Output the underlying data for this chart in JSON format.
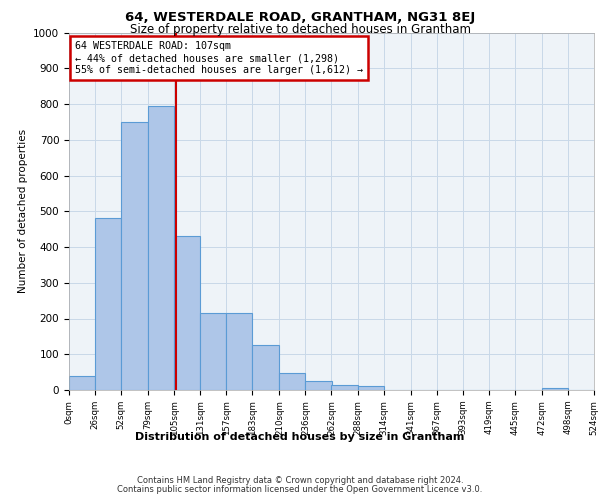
{
  "title": "64, WESTERDALE ROAD, GRANTHAM, NG31 8EJ",
  "subtitle": "Size of property relative to detached houses in Grantham",
  "xlabel": "Distribution of detached houses by size in Grantham",
  "ylabel": "Number of detached properties",
  "footer_line1": "Contains HM Land Registry data © Crown copyright and database right 2024.",
  "footer_line2": "Contains public sector information licensed under the Open Government Licence v3.0.",
  "annotation_line1": "64 WESTERDALE ROAD: 107sqm",
  "annotation_line2": "← 44% of detached houses are smaller (1,298)",
  "annotation_line3": "55% of semi-detached houses are larger (1,612) →",
  "property_size": 107,
  "bin_edges": [
    0,
    26,
    52,
    79,
    105,
    131,
    157,
    183,
    210,
    236,
    262,
    288,
    314,
    341,
    367,
    393,
    419,
    445,
    472,
    498,
    524
  ],
  "bar_heights": [
    40,
    480,
    750,
    795,
    430,
    215,
    215,
    125,
    48,
    25,
    15,
    10,
    0,
    0,
    0,
    0,
    0,
    0,
    5,
    0
  ],
  "bar_color": "#aec6e8",
  "bar_edge_color": "#5b9bd5",
  "vline_color": "#cc0000",
  "vline_x": 107,
  "annotation_box_color": "#cc0000",
  "ylim": [
    0,
    1000
  ],
  "xlim": [
    0,
    524
  ],
  "tick_labels": [
    "0sqm",
    "26sqm",
    "52sqm",
    "79sqm",
    "105sqm",
    "131sqm",
    "157sqm",
    "183sqm",
    "210sqm",
    "236sqm",
    "262sqm",
    "288sqm",
    "314sqm",
    "341sqm",
    "367sqm",
    "393sqm",
    "419sqm",
    "445sqm",
    "472sqm",
    "498sqm",
    "524sqm"
  ],
  "yticks": [
    0,
    100,
    200,
    300,
    400,
    500,
    600,
    700,
    800,
    900,
    1000
  ],
  "grid_color": "#c8d8e8",
  "bg_color": "#eef3f8"
}
